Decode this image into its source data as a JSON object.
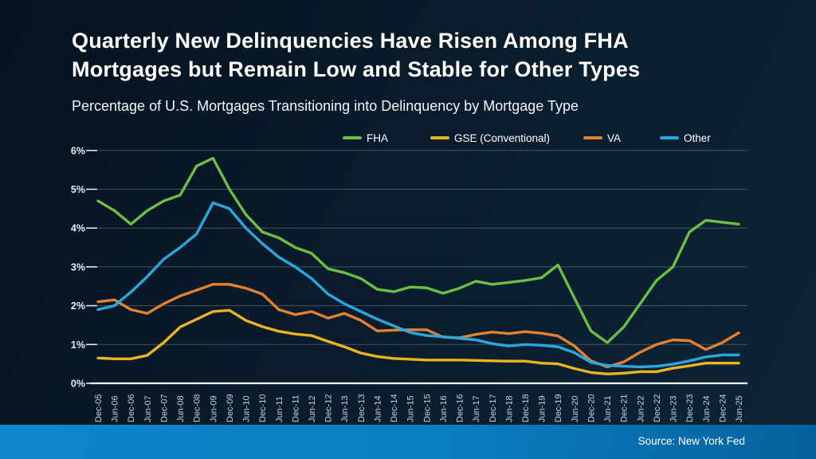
{
  "slide": {
    "title": {
      "line1": "Quarterly New Delinquencies Have Risen Among FHA",
      "line2": "Mortgages but Remain Low and Stable for Other Types"
    },
    "subtitle": "Percentage of U.S. Mortgages Transitioning into Delinquency by Mortgage Type",
    "source": "Source: New York Fed"
  },
  "colors": {
    "background": "#0a1c2c",
    "footer_blue": "#0c82c6",
    "gridline": "#8fa0ab",
    "text": "#ffffff"
  },
  "chart_data": {
    "type": "line",
    "title": "Quarterly New Delinquencies Have Risen Among FHA Mortgages but Remain Low and Stable for Other Types",
    "subtitle": "Percentage of U.S. Mortgages Transitioning into Delinquency by Mortgage Type",
    "xlabel": "",
    "ylabel": "",
    "ylim": [
      0,
      6
    ],
    "y_ticks": [
      "0%",
      "1%",
      "2%",
      "3%",
      "4%",
      "5%",
      "6%"
    ],
    "grid": true,
    "legend_position": "top",
    "categories": [
      "Dec-05",
      "Jun-06",
      "Dec-06",
      "Jun-07",
      "Dec-07",
      "Jun-08",
      "Dec-08",
      "Jun-09",
      "Dec-09",
      "Jun-10",
      "Dec-10",
      "Jun-11",
      "Dec-11",
      "Jun-12",
      "Dec-12",
      "Jun-13",
      "Dec-13",
      "Jun-14",
      "Dec-14",
      "Jun-15",
      "Dec-15",
      "Jun-16",
      "Dec-16",
      "Jun-17",
      "Dec-17",
      "Jun-18",
      "Dec-18",
      "Jun-19",
      "Dec-19",
      "Jun-20",
      "Dec-20",
      "Jun-21",
      "Dec-21",
      "Jun-22",
      "Dec-22",
      "Jun-23",
      "Dec-23",
      "Jun-24",
      "Dec-24",
      "Jun-25"
    ],
    "series": [
      {
        "name": "FHA",
        "color": "#6cbe45",
        "values": [
          4.7,
          4.45,
          4.1,
          4.45,
          4.7,
          4.85,
          5.6,
          5.8,
          5.0,
          4.35,
          3.9,
          3.75,
          3.5,
          3.35,
          2.95,
          2.85,
          2.7,
          2.42,
          2.36,
          2.48,
          2.46,
          2.32,
          2.45,
          2.63,
          2.55,
          2.6,
          2.65,
          2.72,
          3.05,
          2.2,
          1.35,
          1.05,
          1.45,
          2.05,
          2.65,
          3.0,
          3.9,
          4.2,
          4.15,
          4.1
        ]
      },
      {
        "name": "GSE (Conventional)",
        "color": "#eab423",
        "values": [
          0.65,
          0.63,
          0.63,
          0.72,
          1.05,
          1.45,
          1.65,
          1.85,
          1.88,
          1.62,
          1.46,
          1.34,
          1.27,
          1.23,
          1.08,
          0.94,
          0.78,
          0.69,
          0.64,
          0.62,
          0.6,
          0.6,
          0.6,
          0.59,
          0.58,
          0.57,
          0.57,
          0.52,
          0.5,
          0.38,
          0.28,
          0.24,
          0.26,
          0.3,
          0.3,
          0.39,
          0.45,
          0.52,
          0.52,
          0.52
        ]
      },
      {
        "name": "VA",
        "color": "#e2812f",
        "values": [
          2.1,
          2.15,
          1.9,
          1.8,
          2.05,
          2.25,
          2.4,
          2.55,
          2.55,
          2.45,
          2.3,
          1.9,
          1.77,
          1.85,
          1.68,
          1.8,
          1.62,
          1.35,
          1.37,
          1.38,
          1.38,
          1.19,
          1.17,
          1.26,
          1.32,
          1.28,
          1.33,
          1.29,
          1.22,
          0.96,
          0.58,
          0.42,
          0.55,
          0.8,
          1.0,
          1.12,
          1.1,
          0.87,
          1.05,
          1.3
        ]
      },
      {
        "name": "Other",
        "color": "#29a8e0",
        "values": [
          1.9,
          2.0,
          2.35,
          2.75,
          3.2,
          3.5,
          3.85,
          4.65,
          4.5,
          4.0,
          3.6,
          3.25,
          3.0,
          2.7,
          2.3,
          2.05,
          1.85,
          1.65,
          1.48,
          1.31,
          1.23,
          1.2,
          1.16,
          1.12,
          1.02,
          0.96,
          1.0,
          0.98,
          0.94,
          0.79,
          0.54,
          0.46,
          0.44,
          0.42,
          0.44,
          0.49,
          0.58,
          0.68,
          0.73,
          0.73
        ]
      }
    ]
  }
}
